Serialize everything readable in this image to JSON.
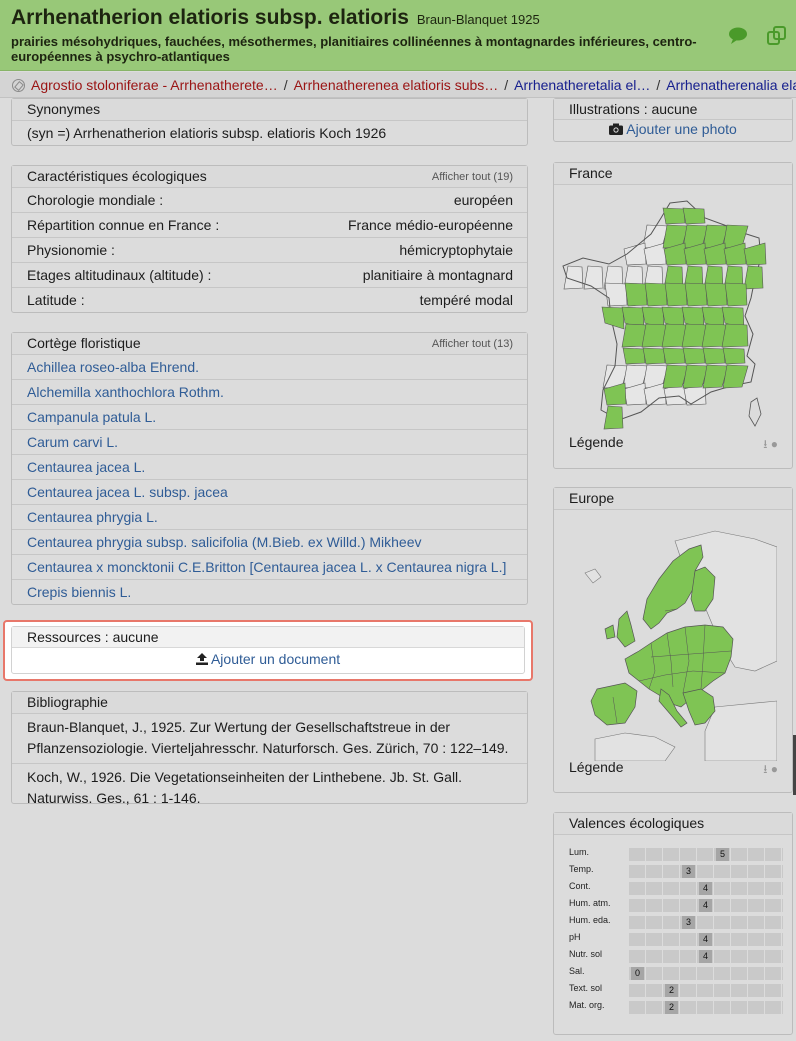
{
  "header": {
    "title": "Arrhenatherion elatioris subsp. elatioris",
    "author": "Braun-Blanquet 1925",
    "subtitle": "prairies mésohydriques, fauchées, mésothermes, planitiaires collinéennes à montagnardes inférieures, centro-européennes à psychro-atlantiques",
    "icons": [
      "comment-icon",
      "copy-icon"
    ]
  },
  "breadcrumb": {
    "items": [
      {
        "label": "Agrostio stoloniferae - Arrhenatherete…",
        "color": "#9a1414"
      },
      {
        "label": "Arrhenatherenea elatioris subs…",
        "color": "#9a1414"
      },
      {
        "label": "Arrhenatheretalia el…",
        "color": "#17208e"
      },
      {
        "label": "Arrhenatherenalia ela…",
        "color": "#17208e"
      }
    ],
    "separator": "/"
  },
  "synonymes": {
    "title": "Synonymes",
    "text": "(syn =) Arrhenatherion elatioris subsp. elatioris Koch 1926"
  },
  "caracteristiques": {
    "title": "Caractéristiques écologiques",
    "show_all": "Afficher tout (19)",
    "rows": [
      {
        "label": "Chorologie mondiale :",
        "value": "européen"
      },
      {
        "label": "Répartition connue en France :",
        "value": "France médio-européenne"
      },
      {
        "label": "Physionomie :",
        "value": "hémicryptophytaie"
      },
      {
        "label": "Etages altitudinaux (altitude) :",
        "value": "planitiaire à montagnard"
      },
      {
        "label": "Latitude :",
        "value": "tempéré modal"
      }
    ]
  },
  "cortege": {
    "title": "Cortège floristique",
    "show_all": "Afficher tout (13)",
    "species": [
      "Achillea roseo-alba Ehrend.",
      "Alchemilla xanthochlora Rothm.",
      "Campanula patula L.",
      "Carum carvi L.",
      "Centaurea jacea L.",
      "Centaurea jacea L. subsp. jacea",
      "Centaurea phrygia L.",
      "Centaurea phrygia subsp. salicifolia (M.Bieb. ex Willd.) Mikheev",
      "Centaurea x moncktonii C.E.Britton [Centaurea jacea L. x Centaurea nigra L.]",
      "Crepis biennis L."
    ]
  },
  "ressources": {
    "title": "Ressources : aucune",
    "add_label": "Ajouter un document",
    "icon": "upload-icon"
  },
  "bibliographie": {
    "title": "Bibliographie",
    "refs": [
      "Braun-Blanquet, J., 1925. Zur Wertung der Gesellschaftstreue in der Pflanzensoziologie. Vierteljahresschr. Naturforsch. Ges. Zürich, 70 : 122–149.",
      "Koch, W., 1926. Die Vegetationseinheiten der Linthebene. Jb. St. Gall. Naturwiss. Ges., 61 : 1-146."
    ]
  },
  "illustrations": {
    "title": "Illustrations : aucune",
    "add_label": "Ajouter une photo",
    "icon": "camera-icon"
  },
  "france_map": {
    "title": "France",
    "legend": "Légende",
    "fill_color": "#7fc454"
  },
  "europe_map": {
    "title": "Europe",
    "legend": "Légende",
    "fill_color": "#7fc454"
  },
  "valences": {
    "title": "Valences écologiques",
    "scale_max": 9,
    "rows": [
      {
        "label": "Lum.",
        "value": 5
      },
      {
        "label": "Temp.",
        "value": 3
      },
      {
        "label": "Cont.",
        "value": 4
      },
      {
        "label": "Hum. atm.",
        "value": 4
      },
      {
        "label": "Hum. eda.",
        "value": 3
      },
      {
        "label": "pH",
        "value": 4
      },
      {
        "label": "Nutr. sol",
        "value": 4
      },
      {
        "label": "Sal.",
        "value": 0
      },
      {
        "label": "Text. sol",
        "value": 2
      },
      {
        "label": "Mat. org.",
        "value": 2
      }
    ]
  }
}
